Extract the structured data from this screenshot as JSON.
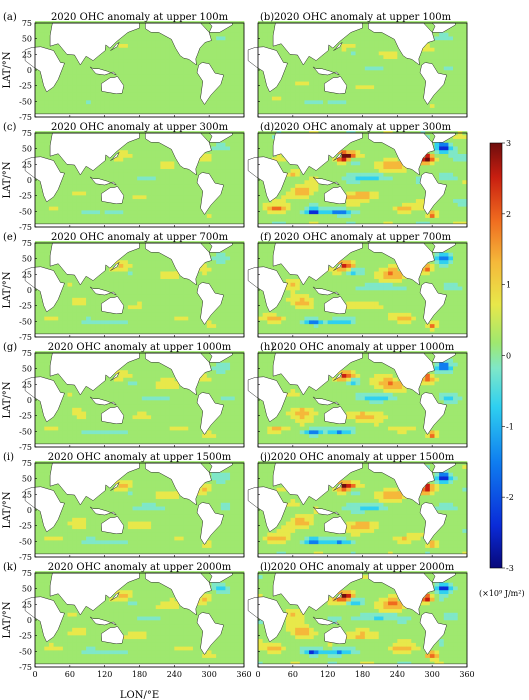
{
  "chart_data": {
    "type": "heatmap",
    "ylabel": "LAT/°N",
    "xlabel": "LON/°E",
    "x_ticks": [
      "0",
      "60",
      "120",
      "180",
      "240",
      "300",
      "360"
    ],
    "y_ticks": [
      "75",
      "50",
      "25",
      "0",
      "-25",
      "-50",
      "-75"
    ],
    "xlim": [
      0,
      360
    ],
    "ylim": [
      -75,
      75
    ],
    "colorbar": {
      "ticks": [
        "3",
        "2",
        "1",
        "0",
        "-1",
        "-2",
        "-3"
      ],
      "range": [
        -3,
        3
      ],
      "unit": "(×10⁹ J/m²)",
      "colormap": [
        "#08087a",
        "#0a2bd8",
        "#0f7ef0",
        "#2fd0f0",
        "#7fe7c8",
        "#9fe86f",
        "#e8e84a",
        "#f5b83a",
        "#ef6a1f",
        "#c81e10",
        "#6e0d0d"
      ]
    },
    "panels": [
      {
        "tag": "(a)",
        "title": "2020 OHC anomaly at upper 100m",
        "intensity": 0.25
      },
      {
        "tag": "(b)",
        "title": "2020 OHC anomaly at upper 100m",
        "intensity": 0.25
      },
      {
        "tag": "(c)",
        "title": "2020 OHC anomaly at upper 300m",
        "intensity": 0.45
      },
      {
        "tag": "(d)",
        "title": "2020 OHC anomaly at upper 300m",
        "intensity": 1.0
      },
      {
        "tag": "(e)",
        "title": "2020 OHC anomaly at upper 700m",
        "intensity": 0.55
      },
      {
        "tag": "(f)",
        "title": "2020 OHC anomaly at upper 700m",
        "intensity": 0.8
      },
      {
        "tag": "(g)",
        "title": "2020 OHC anomaly at upper 1000m",
        "intensity": 0.6
      },
      {
        "tag": "(h)",
        "title": "2020 OHC anomaly at upper 1000m",
        "intensity": 0.85
      },
      {
        "tag": "(i)",
        "title": "2020 OHC anomaly at upper 1500m",
        "intensity": 0.65
      },
      {
        "tag": "(j)",
        "title": "2020 OHC anomaly at upper 1500m",
        "intensity": 0.9
      },
      {
        "tag": "(k)",
        "title": "2020 OHC anomaly at upper 2000m",
        "intensity": 0.7
      },
      {
        "tag": "(l)",
        "title": "2020 OHC anomaly at upper 2000m",
        "intensity": 0.95
      }
    ]
  }
}
